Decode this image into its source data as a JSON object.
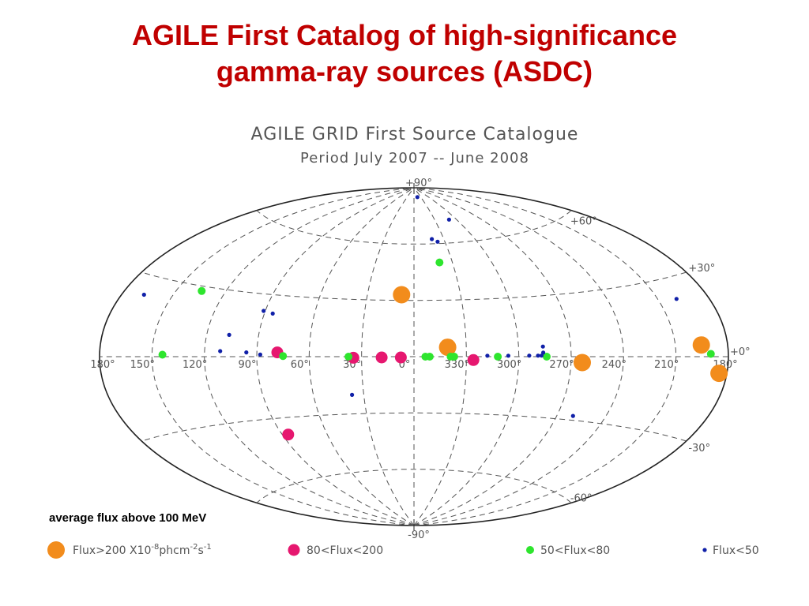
{
  "slide": {
    "title_line1": "AGILE First Catalog of high-significance",
    "title_line2": "gamma-ray sources (ASDC)",
    "caption": "average flux above 100 MeV"
  },
  "colors": {
    "title": "#c00000",
    "flux_gt_200": "#f28c1c",
    "flux_80_200": "#e6176f",
    "flux_50_80": "#2ee52e",
    "flux_lt_50": "#1020a8",
    "grid": "#555555"
  },
  "chart_data": {
    "type": "scatter",
    "projection": "aitoff",
    "coordinates": "galactic",
    "title": "AGILE GRID First Source Catalogue",
    "subtitle": "Period July 2007 -- June 2008",
    "grid": true,
    "longitude_labels": [
      "180°",
      "150°",
      "120°",
      "90°",
      "60°",
      "30°",
      "0°",
      "330°",
      "300°",
      "270°",
      "240°",
      "210°",
      "180°"
    ],
    "latitude_labels": {
      "top": "+90°",
      "p60": "+60°",
      "p30": "+30°",
      "zero": "+0°",
      "m30": "-30°",
      "m60": "-60°",
      "bottom": "-90°"
    },
    "legend": {
      "position": "bottom",
      "flux_unit_prefix": "X10",
      "flux_unit_exp": "-8",
      "flux_unit_mid": "phcm",
      "flux_unit_exp2": "-2",
      "flux_unit_s": "s",
      "flux_unit_exp3": "-1"
    },
    "series": [
      {
        "name": "Flux>200",
        "class": "gt200",
        "points": [
          {
            "l": 340.7,
            "b": 5.0,
            "label": ""
          },
          {
            "l": 263.6,
            "b": -2.8
          },
          {
            "l": 195.1,
            "b": 4.3
          },
          {
            "l": 184.5,
            "b": -5.8
          },
          {
            "l": 8.0,
            "b": 33.0
          }
        ]
      },
      {
        "name": "80<Flux<200",
        "class": "f80_200",
        "points": [
          {
            "l": 78.3,
            "b": 2.1
          },
          {
            "l": 34.7,
            "b": -0.6
          },
          {
            "l": 18.5,
            "b": -0.4
          },
          {
            "l": 7.5,
            "b": -0.4
          },
          {
            "l": 326.0,
            "b": -1.8
          },
          {
            "l": 86.1,
            "b": -38.2
          }
        ]
      },
      {
        "name": "50<Flux<80",
        "class": "f50_80",
        "points": [
          {
            "l": 134.7,
            "b": 28.0
          },
          {
            "l": 144.0,
            "b": 0.8
          },
          {
            "l": 75.0,
            "b": 0.3
          },
          {
            "l": 37.5,
            "b": 0.0
          },
          {
            "l": 353.5,
            "b": 0.0
          },
          {
            "l": 351.0,
            "b": 0.0
          },
          {
            "l": 339.0,
            "b": 0.0
          },
          {
            "l": 337.0,
            "b": 0.0
          },
          {
            "l": 312.0,
            "b": 0.0
          },
          {
            "l": 284.0,
            "b": 0.0
          },
          {
            "l": 190.0,
            "b": 1.0
          },
          {
            "l": 340.0,
            "b": 50.0
          }
        ]
      },
      {
        "name": "Flux<50",
        "class": "lt50",
        "points": [
          {
            "l": 345.0,
            "b": 85.0
          },
          {
            "l": 310.0,
            "b": 72.0
          },
          {
            "l": 342.0,
            "b": 62.5
          },
          {
            "l": 337.0,
            "b": 61.0
          },
          {
            "l": 167.0,
            "b": 23.0
          },
          {
            "l": 85.0,
            "b": 21.0
          },
          {
            "l": 91.0,
            "b": 22.0
          },
          {
            "l": 107.0,
            "b": 10.0
          },
          {
            "l": 96.0,
            "b": 2.0
          },
          {
            "l": 111.0,
            "b": 2.5
          },
          {
            "l": 318.0,
            "b": 0.5
          },
          {
            "l": 306.0,
            "b": 0.5
          },
          {
            "l": 294.0,
            "b": 0.5
          },
          {
            "l": 289.0,
            "b": 0.5
          },
          {
            "l": 287.0,
            "b": 0.5
          },
          {
            "l": 286.0,
            "b": 5.0
          },
          {
            "l": 286.0,
            "b": 2.0
          },
          {
            "l": 199.0,
            "b": 22.0
          },
          {
            "l": 37.0,
            "b": -20.0
          },
          {
            "l": 260.0,
            "b": -28.0
          },
          {
            "l": 88.0,
            "b": 1.0
          }
        ]
      }
    ]
  }
}
